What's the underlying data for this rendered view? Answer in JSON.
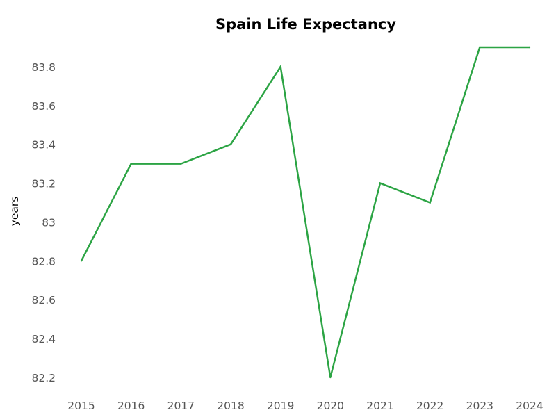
{
  "chart_data": {
    "type": "line",
    "title": "Spain Life Expectancy",
    "xlabel": "",
    "ylabel": "years",
    "x": [
      "2015",
      "2016",
      "2017",
      "2018",
      "2019",
      "2020",
      "2021",
      "2022",
      "2023",
      "2024"
    ],
    "series": [
      {
        "values": [
          82.8,
          83.3,
          83.3,
          83.4,
          83.8,
          82.2,
          83.2,
          83.1,
          83.9,
          83.9
        ],
        "color": "#2ca444"
      }
    ],
    "y_ticks": [
      "82.2",
      "82.4",
      "82.6",
      "82.8",
      "83",
      "83.2",
      "83.4",
      "83.6",
      "83.8"
    ],
    "ylim": [
      82.2,
      83.9
    ],
    "grid": false,
    "legend": false
  }
}
